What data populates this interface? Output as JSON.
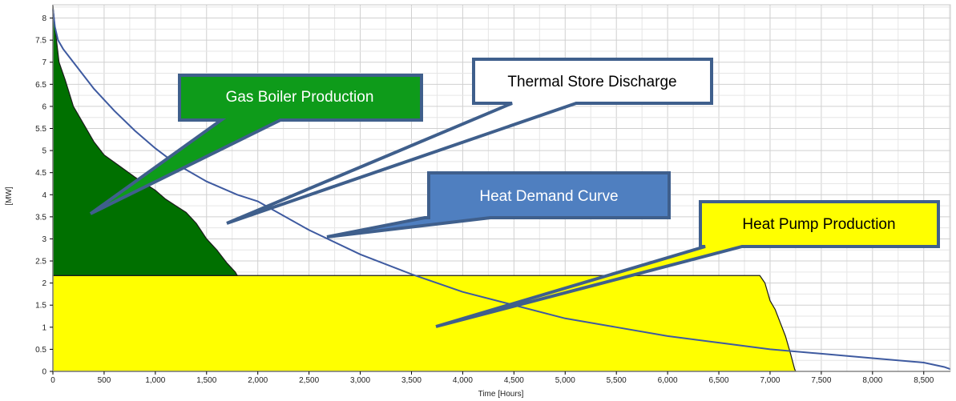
{
  "chart_data": {
    "type": "area",
    "xlabel": "Time [Hours]",
    "ylabel": "[MW]",
    "xlim": [
      0,
      8760
    ],
    "ylim": [
      0,
      8.3
    ],
    "grid": true,
    "x_ticks": [
      0,
      500,
      1000,
      1500,
      2000,
      2500,
      3000,
      3500,
      4000,
      4500,
      5000,
      5500,
      6000,
      6500,
      7000,
      7500,
      8000,
      8500
    ],
    "x_tick_labels": [
      "0",
      "500",
      "1,000",
      "1,500",
      "2,000",
      "2,500",
      "3,000",
      "3,500",
      "4,000",
      "4,500",
      "5,000",
      "5,500",
      "6,000",
      "6,500",
      "7,000",
      "7,500",
      "8,000",
      "8,500"
    ],
    "y_ticks": [
      0,
      0.5,
      1,
      1.5,
      2,
      2.5,
      3,
      3.5,
      4,
      4.5,
      5,
      5.5,
      6,
      6.5,
      7,
      7.5,
      8
    ],
    "y_tick_labels": [
      "0",
      "0.5",
      "1",
      "1.5",
      "2",
      "2.5",
      "3",
      "3.5",
      "4",
      "4.5",
      "5",
      "5.5",
      "6",
      "6.5",
      "7",
      "7.5",
      "8"
    ],
    "series": [
      {
        "name": "Heat Pump Production",
        "kind": "area",
        "color": "#ffff00",
        "points": [
          [
            0,
            2.17
          ],
          [
            6900,
            2.17
          ],
          [
            6950,
            2.0
          ],
          [
            7000,
            1.6
          ],
          [
            7050,
            1.4
          ],
          [
            7100,
            1.1
          ],
          [
            7150,
            0.8
          ],
          [
            7200,
            0.4
          ],
          [
            7240,
            0.05
          ],
          [
            7250,
            0
          ]
        ]
      },
      {
        "name": "Gas Boiler Production",
        "kind": "area",
        "color": "#007000",
        "base": 2.17,
        "points": [
          [
            0,
            8.3
          ],
          [
            20,
            7.8
          ],
          [
            60,
            7.0
          ],
          [
            120,
            6.6
          ],
          [
            200,
            6.0
          ],
          [
            300,
            5.6
          ],
          [
            400,
            5.2
          ],
          [
            500,
            4.9
          ],
          [
            650,
            4.65
          ],
          [
            800,
            4.4
          ],
          [
            1000,
            4.1
          ],
          [
            1100,
            3.9
          ],
          [
            1200,
            3.75
          ],
          [
            1300,
            3.6
          ],
          [
            1400,
            3.35
          ],
          [
            1500,
            3.0
          ],
          [
            1600,
            2.75
          ],
          [
            1700,
            2.45
          ],
          [
            1780,
            2.25
          ],
          [
            1800,
            2.17
          ]
        ]
      },
      {
        "name": "Heat Demand Curve",
        "kind": "line",
        "color": "#3e5aa0",
        "points": [
          [
            0,
            8.2
          ],
          [
            20,
            7.8
          ],
          [
            50,
            7.5
          ],
          [
            100,
            7.3
          ],
          [
            200,
            7.0
          ],
          [
            400,
            6.4
          ],
          [
            600,
            5.9
          ],
          [
            800,
            5.45
          ],
          [
            1000,
            5.05
          ],
          [
            1200,
            4.7
          ],
          [
            1500,
            4.3
          ],
          [
            1800,
            4.0
          ],
          [
            2000,
            3.85
          ],
          [
            2500,
            3.2
          ],
          [
            3000,
            2.65
          ],
          [
            3500,
            2.2
          ],
          [
            4000,
            1.8
          ],
          [
            4500,
            1.5
          ],
          [
            5000,
            1.2
          ],
          [
            5500,
            1.0
          ],
          [
            6000,
            0.8
          ],
          [
            6500,
            0.65
          ],
          [
            7000,
            0.5
          ],
          [
            7500,
            0.4
          ],
          [
            8000,
            0.3
          ],
          [
            8500,
            0.2
          ],
          [
            8700,
            0.1
          ],
          [
            8760,
            0.05
          ]
        ]
      }
    ]
  },
  "callouts": {
    "gas_boiler": {
      "label": "Gas Boiler Production",
      "fill": "#0e9b1a",
      "text_color": "#ffffff"
    },
    "thermal_store": {
      "label": "Thermal Store Discharge",
      "fill": "#ffffff",
      "text_color": "#000000"
    },
    "heat_demand": {
      "label": "Heat Demand Curve",
      "fill": "#4f7fc0",
      "text_color": "#ffffff"
    },
    "heat_pump": {
      "label": "Heat Pump Production",
      "fill": "#ffff00",
      "text_color": "#000000"
    }
  },
  "colors": {
    "callout_border": "#3f5f8c",
    "grid": "#d0d0d0",
    "axis": "#000000"
  }
}
